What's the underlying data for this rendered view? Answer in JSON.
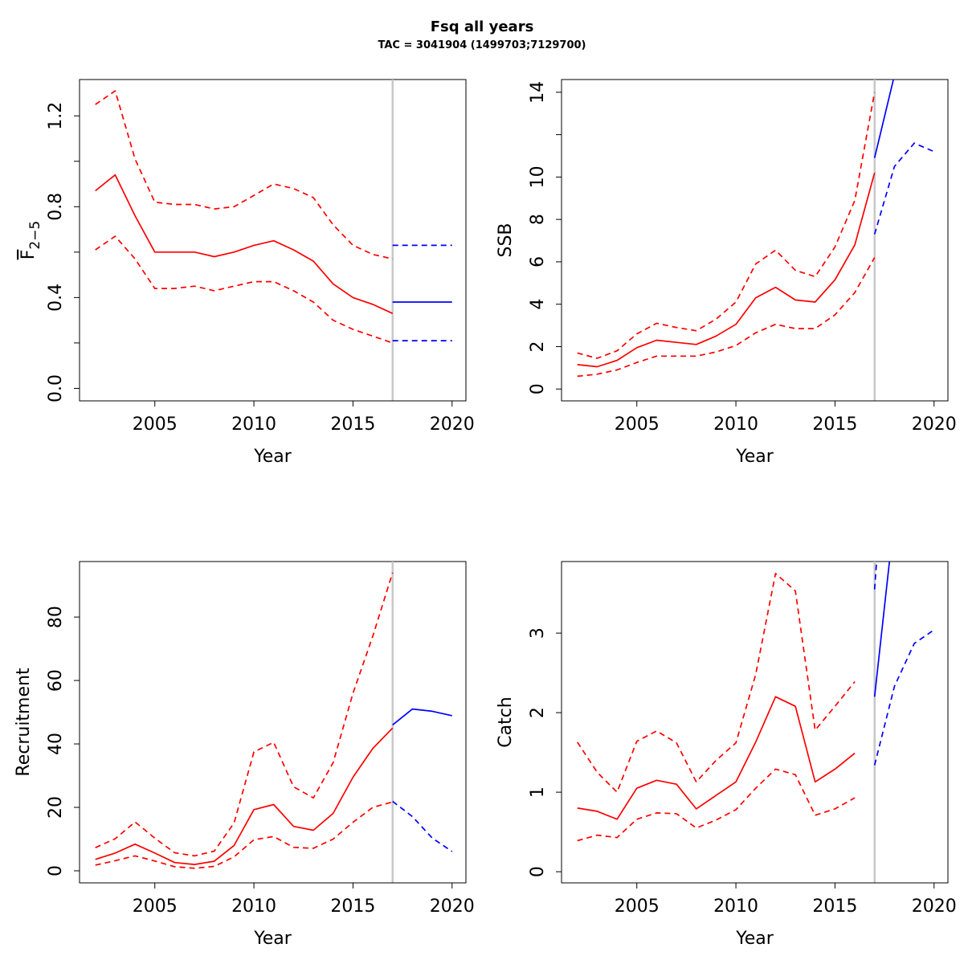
{
  "header": {
    "title": "Fsq all years",
    "subtitle": "TAC = 3041904 (1499703;7129700)"
  },
  "colors": {
    "estimate": "#ff0000",
    "forecast": "#0000ff",
    "divider": "#c8c8c8",
    "axis": "#000000"
  },
  "chart_data": [
    {
      "type": "line",
      "panel": "top-left",
      "xlabel": "Year",
      "ylabel_base": "F",
      "ylabel_sub": "2−5",
      "xlim": [
        2001.2,
        2020.7
      ],
      "ylim": [
        -0.055,
        1.36
      ],
      "xticks": [
        2005,
        2010,
        2015,
        2020
      ],
      "yticks": [
        0.0,
        0.2,
        0.4,
        0.6,
        0.8,
        1.0,
        1.2
      ],
      "ytick_labels": [
        "0.0",
        "",
        "0.4",
        "",
        "0.8",
        "",
        "1.2"
      ],
      "divider_x": 2017,
      "series": [
        {
          "group": "estimate",
          "style": "solid",
          "x": [
            2002,
            2003,
            2004,
            2005,
            2006,
            2007,
            2008,
            2009,
            2010,
            2011,
            2012,
            2013,
            2014,
            2015,
            2016,
            2017
          ],
          "y": [
            0.87,
            0.94,
            0.76,
            0.6,
            0.6,
            0.6,
            0.58,
            0.6,
            0.63,
            0.65,
            0.61,
            0.56,
            0.46,
            0.4,
            0.37,
            0.33
          ]
        },
        {
          "group": "estimate",
          "style": "dashed",
          "x": [
            2002,
            2003,
            2004,
            2005,
            2006,
            2007,
            2008,
            2009,
            2010,
            2011,
            2012,
            2013,
            2014,
            2015,
            2016,
            2017
          ],
          "y": [
            1.25,
            1.31,
            1.01,
            0.82,
            0.81,
            0.81,
            0.79,
            0.8,
            0.85,
            0.9,
            0.88,
            0.84,
            0.72,
            0.63,
            0.59,
            0.57
          ]
        },
        {
          "group": "estimate",
          "style": "dashed",
          "x": [
            2002,
            2003,
            2004,
            2005,
            2006,
            2007,
            2008,
            2009,
            2010,
            2011,
            2012,
            2013,
            2014,
            2015,
            2016,
            2017
          ],
          "y": [
            0.61,
            0.67,
            0.57,
            0.44,
            0.44,
            0.45,
            0.43,
            0.45,
            0.47,
            0.47,
            0.43,
            0.38,
            0.3,
            0.26,
            0.23,
            0.2
          ]
        },
        {
          "group": "forecast",
          "style": "solid",
          "x": [
            2017,
            2018,
            2019,
            2020
          ],
          "y": [
            0.38,
            0.38,
            0.38,
            0.38
          ]
        },
        {
          "group": "forecast",
          "style": "dashed",
          "x": [
            2017,
            2018,
            2019,
            2020
          ],
          "y": [
            0.63,
            0.63,
            0.63,
            0.63
          ]
        },
        {
          "group": "forecast",
          "style": "dashed",
          "x": [
            2017,
            2018,
            2019,
            2020
          ],
          "y": [
            0.21,
            0.21,
            0.21,
            0.21
          ]
        }
      ]
    },
    {
      "type": "line",
      "panel": "top-right",
      "xlabel": "Year",
      "ylabel": "SSB",
      "xlim": [
        2001.2,
        2020.7
      ],
      "ylim": [
        -0.56,
        14.6
      ],
      "xticks": [
        2005,
        2010,
        2015,
        2020
      ],
      "yticks": [
        0,
        2,
        4,
        6,
        8,
        10,
        12,
        14
      ],
      "ytick_labels": [
        "0",
        "2",
        "4",
        "6",
        "8",
        "10",
        "",
        "14"
      ],
      "divider_x": 2017,
      "series": [
        {
          "group": "estimate",
          "style": "solid",
          "x": [
            2002,
            2003,
            2004,
            2005,
            2006,
            2007,
            2008,
            2009,
            2010,
            2011,
            2012,
            2013,
            2014,
            2015,
            2016,
            2017
          ],
          "y": [
            1.15,
            1.05,
            1.35,
            1.95,
            2.3,
            2.2,
            2.1,
            2.5,
            3.05,
            4.3,
            4.8,
            4.2,
            4.1,
            5.15,
            6.8,
            10.2
          ]
        },
        {
          "group": "estimate",
          "style": "dashed",
          "x": [
            2002,
            2003,
            2004,
            2005,
            2006,
            2007,
            2008,
            2009,
            2010,
            2011,
            2012,
            2013,
            2014,
            2015,
            2016,
            2017
          ],
          "y": [
            1.7,
            1.45,
            1.8,
            2.6,
            3.1,
            2.9,
            2.75,
            3.3,
            4.1,
            5.9,
            6.55,
            5.6,
            5.3,
            6.7,
            8.9,
            14.0
          ]
        },
        {
          "group": "estimate",
          "style": "dashed",
          "x": [
            2002,
            2003,
            2004,
            2005,
            2006,
            2007,
            2008,
            2009,
            2010,
            2011,
            2012,
            2013,
            2014,
            2015,
            2016,
            2017
          ],
          "y": [
            0.6,
            0.7,
            0.9,
            1.25,
            1.55,
            1.55,
            1.55,
            1.75,
            2.05,
            2.65,
            3.05,
            2.85,
            2.85,
            3.5,
            4.55,
            6.2
          ]
        },
        {
          "group": "forecast",
          "style": "solid",
          "x": [
            2017,
            2018
          ],
          "y": [
            10.9,
            14.8
          ]
        },
        {
          "group": "forecast",
          "style": "dashed",
          "x": [
            2017,
            2018,
            2019,
            2020
          ],
          "y": [
            7.3,
            10.5,
            11.6,
            11.2
          ]
        }
      ]
    },
    {
      "type": "line",
      "panel": "bottom-left",
      "xlabel": "Year",
      "ylabel": "Recruitment",
      "xlim": [
        2001.2,
        2020.7
      ],
      "ylim": [
        -3.8,
        97.5
      ],
      "xticks": [
        2005,
        2010,
        2015,
        2020
      ],
      "yticks": [
        0,
        20,
        40,
        60,
        80
      ],
      "ytick_labels": [
        "0",
        "20",
        "40",
        "60",
        "80"
      ],
      "divider_x": 2017,
      "series": [
        {
          "group": "estimate",
          "style": "solid",
          "x": [
            2002,
            2003,
            2004,
            2005,
            2006,
            2007,
            2008,
            2009,
            2010,
            2011,
            2012,
            2013,
            2014,
            2015,
            2016,
            2017
          ],
          "y": [
            3.6,
            5.6,
            8.4,
            5.6,
            2.6,
            2.0,
            3.0,
            8.0,
            19.3,
            20.9,
            14.0,
            12.8,
            18.1,
            29.5,
            38.6,
            45.0
          ]
        },
        {
          "group": "estimate",
          "style": "dashed",
          "x": [
            2002,
            2003,
            2004,
            2005,
            2006,
            2007,
            2008,
            2009,
            2010,
            2011,
            2012,
            2013,
            2014,
            2015,
            2016,
            2017
          ],
          "y": [
            7.3,
            10.1,
            15.4,
            10.3,
            5.7,
            4.7,
            6.2,
            15.1,
            37.5,
            40.5,
            26.5,
            23.0,
            34.1,
            56.0,
            74.0,
            94.0
          ]
        },
        {
          "group": "estimate",
          "style": "dashed",
          "x": [
            2002,
            2003,
            2004,
            2005,
            2006,
            2007,
            2008,
            2009,
            2010,
            2011,
            2012,
            2013,
            2014,
            2015,
            2016,
            2017
          ],
          "y": [
            1.8,
            3.2,
            4.7,
            3.1,
            1.3,
            0.8,
            1.4,
            4.4,
            9.8,
            10.8,
            7.4,
            7.1,
            10.0,
            15.3,
            20.0,
            21.7
          ]
        },
        {
          "group": "forecast",
          "style": "solid",
          "x": [
            2017,
            2018,
            2019,
            2020
          ],
          "y": [
            46.0,
            51.0,
            50.3,
            48.9
          ]
        },
        {
          "group": "forecast",
          "style": "dashed",
          "x": [
            2017,
            2018,
            2019,
            2020
          ],
          "y": [
            21.9,
            17.1,
            10.3,
            6.1
          ]
        }
      ]
    },
    {
      "type": "line",
      "panel": "bottom-right",
      "xlabel": "Year",
      "ylabel": "Catch",
      "xlim": [
        2001.2,
        2020.7
      ],
      "ylim": [
        -0.14,
        3.9
      ],
      "xticks": [
        2005,
        2010,
        2015,
        2020
      ],
      "yticks": [
        0,
        1,
        2,
        3
      ],
      "ytick_labels": [
        "0",
        "1",
        "2",
        "3"
      ],
      "divider_x": 2017,
      "series": [
        {
          "group": "estimate",
          "style": "solid",
          "x": [
            2002,
            2003,
            2004,
            2005,
            2006,
            2007,
            2008,
            2009,
            2010,
            2011,
            2012,
            2013,
            2014,
            2015,
            2016
          ],
          "y": [
            0.8,
            0.76,
            0.66,
            1.05,
            1.15,
            1.1,
            0.79,
            0.96,
            1.13,
            1.63,
            2.2,
            2.08,
            1.13,
            1.29,
            1.49
          ]
        },
        {
          "group": "estimate",
          "style": "dashed",
          "x": [
            2002,
            2003,
            2004,
            2005,
            2006,
            2007,
            2008,
            2009,
            2010,
            2011,
            2012,
            2013,
            2014,
            2015,
            2016
          ],
          "y": [
            1.63,
            1.25,
            1.0,
            1.64,
            1.77,
            1.62,
            1.13,
            1.4,
            1.62,
            2.48,
            3.75,
            3.53,
            1.78,
            2.08,
            2.39
          ]
        },
        {
          "group": "estimate",
          "style": "dashed",
          "x": [
            2002,
            2003,
            2004,
            2005,
            2006,
            2007,
            2008,
            2009,
            2010,
            2011,
            2012,
            2013,
            2014,
            2015,
            2016
          ],
          "y": [
            0.39,
            0.46,
            0.43,
            0.66,
            0.74,
            0.73,
            0.55,
            0.65,
            0.78,
            1.05,
            1.29,
            1.22,
            0.71,
            0.79,
            0.93
          ]
        },
        {
          "group": "forecast",
          "style": "solid",
          "x": [
            2017,
            2017.75
          ],
          "y": [
            2.2,
            3.9
          ]
        },
        {
          "group": "forecast",
          "style": "dashed",
          "x": [
            2017,
            2017.1
          ],
          "y": [
            3.55,
            3.9
          ]
        },
        {
          "group": "forecast",
          "style": "dashed",
          "x": [
            2017,
            2018,
            2019,
            2020
          ],
          "y": [
            1.34,
            2.33,
            2.87,
            3.04
          ]
        }
      ]
    }
  ]
}
